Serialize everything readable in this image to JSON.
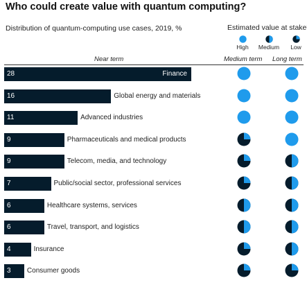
{
  "title": "Who could create value with quantum computing?",
  "chart_data": {
    "type": "bar",
    "title": "Who could create value with quantum computing?",
    "subtitle": "Distribution of quantum-computing use cases, 2019, %",
    "column_headers": {
      "bars": "Near term",
      "medium": "Medium term",
      "long": "Long term"
    },
    "legend": {
      "title": "Estimated value at stake¹",
      "items": [
        {
          "label": "High",
          "level": 1.0
        },
        {
          "label": "Medium",
          "level": 0.5
        },
        {
          "label": "Low",
          "level": 0.25
        }
      ]
    },
    "colors": {
      "bar": "#051c2c",
      "pie_fill": "#1f9bec",
      "pie_empty": "#051c2c"
    },
    "xlim": [
      0,
      28
    ],
    "categories": [
      "Finance",
      "Global energy and materials",
      "Advanced industries",
      "Pharmaceuticals and medical products",
      "Telecom, media, and technology",
      "Public/social sector, professional services",
      "Healthcare systems, services",
      "Travel, transport, and logistics",
      "Insurance",
      "Consumer goods"
    ],
    "values": [
      28,
      16,
      11,
      9,
      9,
      7,
      6,
      6,
      4,
      3
    ],
    "medium_term": [
      1.0,
      1.0,
      1.0,
      0.25,
      0.25,
      0.25,
      0.5,
      0.5,
      0.25,
      0.25
    ],
    "long_term": [
      1.0,
      1.0,
      1.0,
      1.0,
      0.5,
      0.5,
      0.5,
      0.5,
      0.5,
      0.25
    ]
  }
}
